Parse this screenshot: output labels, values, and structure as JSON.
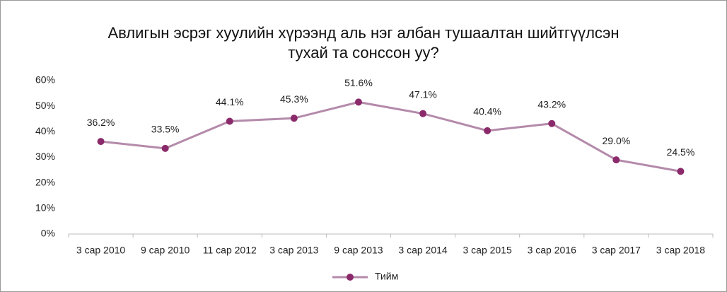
{
  "chart_data": {
    "type": "line",
    "title": [
      "Авлигын эсрэг хуулийн хүрээнд аль нэг албан тушаалтан шийтгүүлсэн",
      "тухай та сонссон уу?"
    ],
    "categories": [
      "3 сар 2010",
      "9 сар 2010",
      "11 сар 2012",
      "3 сар 2013",
      "9 сар 2013",
      "3 сар 2014",
      "3 сар 2015",
      "3 сар 2016",
      "3 сар 2017",
      "3 сар 2018"
    ],
    "series": [
      {
        "name": "Тийм",
        "color": "#b48aaa",
        "marker_color": "#8b2a6b",
        "values": [
          36.2,
          33.5,
          44.1,
          45.3,
          51.6,
          47.1,
          40.4,
          43.2,
          29.0,
          24.5
        ],
        "value_labels": [
          "36.2%",
          "33.5%",
          "44.1%",
          "45.3%",
          "51.6%",
          "47.1%",
          "40.4%",
          "43.2%",
          "29.0%",
          "24.5%"
        ]
      }
    ],
    "ylim": [
      0,
      60
    ],
    "yticks": [
      {
        "value": 0,
        "label": "0%"
      },
      {
        "value": 10,
        "label": "10%"
      },
      {
        "value": 20,
        "label": "20%"
      },
      {
        "value": 30,
        "label": "30%"
      },
      {
        "value": 40,
        "label": "40%"
      },
      {
        "value": 50,
        "label": "50%"
      },
      {
        "value": 60,
        "label": "60%"
      }
    ],
    "grid": false,
    "legend": "bottom"
  }
}
